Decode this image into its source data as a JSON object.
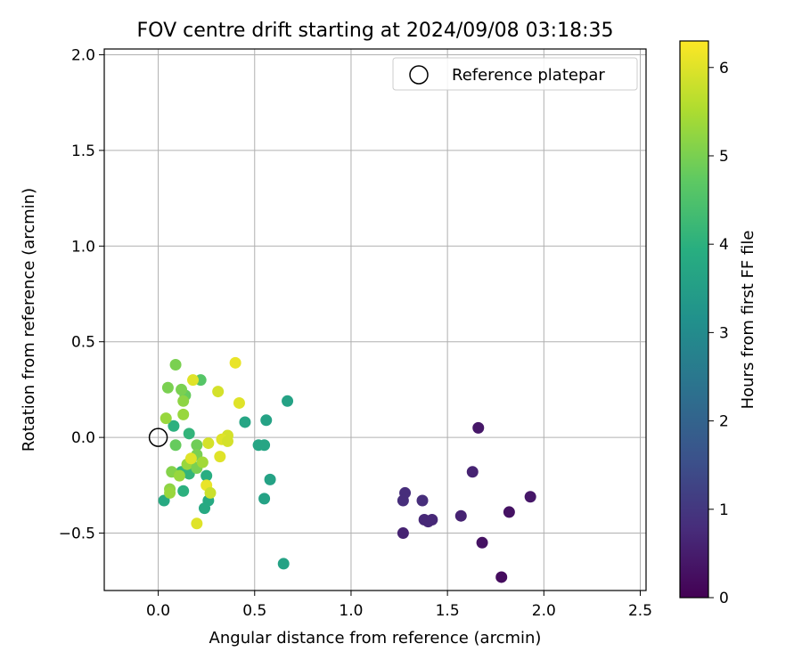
{
  "chart_data": {
    "type": "scatter",
    "title": "FOV centre drift starting at 2024/09/08 03:18:35",
    "xlabel": "Angular distance from reference (arcmin)",
    "ylabel": "Rotation from reference (arcmin)",
    "xlim": [
      -0.28,
      2.53
    ],
    "ylim": [
      -0.8,
      2.03
    ],
    "xticks": [
      0.0,
      0.5,
      1.0,
      1.5,
      2.0,
      2.5
    ],
    "xtick_labels": [
      "0.0",
      "0.5",
      "1.0",
      "1.5",
      "2.0",
      "2.5"
    ],
    "yticks": [
      -0.5,
      0.0,
      0.5,
      1.0,
      1.5,
      2.0
    ],
    "ytick_labels": [
      "−0.5",
      "0.0",
      "0.5",
      "1.0",
      "1.5",
      "2.0"
    ],
    "grid": true,
    "legend": {
      "position": "top-right",
      "entries": [
        {
          "label": "Reference platepar",
          "marker": "open-circle",
          "color": "#000000"
        }
      ]
    },
    "reference_point": {
      "x": 0.0,
      "y": 0.0
    },
    "colorbar": {
      "label": "Hours from first FF file",
      "range": [
        0,
        6.3
      ],
      "ticks": [
        0,
        1,
        2,
        3,
        4,
        5,
        6
      ],
      "tick_labels": [
        "0",
        "1",
        "2",
        "3",
        "4",
        "5",
        "6"
      ],
      "colormap": "viridis"
    },
    "points": [
      {
        "x": 1.66,
        "y": 0.05,
        "c": 0.4
      },
      {
        "x": 1.93,
        "y": -0.31,
        "c": 0.4
      },
      {
        "x": 1.63,
        "y": -0.18,
        "c": 0.6
      },
      {
        "x": 1.82,
        "y": -0.39,
        "c": 0.3
      },
      {
        "x": 1.28,
        "y": -0.29,
        "c": 0.8
      },
      {
        "x": 1.27,
        "y": -0.33,
        "c": 0.8
      },
      {
        "x": 1.37,
        "y": -0.33,
        "c": 0.8
      },
      {
        "x": 1.38,
        "y": -0.43,
        "c": 0.7
      },
      {
        "x": 1.4,
        "y": -0.44,
        "c": 0.7
      },
      {
        "x": 1.42,
        "y": -0.43,
        "c": 0.7
      },
      {
        "x": 1.57,
        "y": -0.41,
        "c": 0.6
      },
      {
        "x": 1.27,
        "y": -0.5,
        "c": 0.6
      },
      {
        "x": 1.68,
        "y": -0.55,
        "c": 0.3
      },
      {
        "x": 1.78,
        "y": -0.73,
        "c": 0.2
      },
      {
        "x": 0.67,
        "y": 0.19,
        "c": 3.6
      },
      {
        "x": 0.56,
        "y": 0.09,
        "c": 3.6
      },
      {
        "x": 0.45,
        "y": 0.08,
        "c": 3.7
      },
      {
        "x": 0.52,
        "y": -0.04,
        "c": 3.7
      },
      {
        "x": 0.55,
        "y": -0.04,
        "c": 3.7
      },
      {
        "x": 0.58,
        "y": -0.22,
        "c": 3.6
      },
      {
        "x": 0.55,
        "y": -0.32,
        "c": 3.6
      },
      {
        "x": 0.65,
        "y": -0.66,
        "c": 3.6
      },
      {
        "x": 0.26,
        "y": -0.33,
        "c": 3.8
      },
      {
        "x": 0.24,
        "y": -0.37,
        "c": 3.8
      },
      {
        "x": 0.03,
        "y": -0.33,
        "c": 3.8
      },
      {
        "x": 0.08,
        "y": 0.06,
        "c": 4.0
      },
      {
        "x": 0.16,
        "y": 0.02,
        "c": 4.1
      },
      {
        "x": 0.12,
        "y": -0.18,
        "c": 4.1
      },
      {
        "x": 0.16,
        "y": -0.19,
        "c": 4.1
      },
      {
        "x": 0.25,
        "y": -0.2,
        "c": 3.9
      },
      {
        "x": 0.13,
        "y": -0.28,
        "c": 4.0
      },
      {
        "x": 0.22,
        "y": 0.3,
        "c": 4.6
      },
      {
        "x": 0.14,
        "y": 0.22,
        "c": 4.8
      },
      {
        "x": 0.09,
        "y": 0.38,
        "c": 5.0
      },
      {
        "x": 0.12,
        "y": 0.25,
        "c": 5.0
      },
      {
        "x": 0.05,
        "y": 0.26,
        "c": 5.0
      },
      {
        "x": 0.13,
        "y": 0.19,
        "c": 5.2
      },
      {
        "x": 0.13,
        "y": 0.12,
        "c": 5.3
      },
      {
        "x": 0.04,
        "y": 0.1,
        "c": 5.3
      },
      {
        "x": 0.09,
        "y": -0.04,
        "c": 4.8
      },
      {
        "x": 0.2,
        "y": -0.04,
        "c": 4.9
      },
      {
        "x": 0.2,
        "y": -0.09,
        "c": 5.0
      },
      {
        "x": 0.17,
        "y": -0.12,
        "c": 5.1
      },
      {
        "x": 0.15,
        "y": -0.14,
        "c": 5.3
      },
      {
        "x": 0.2,
        "y": -0.16,
        "c": 5.0
      },
      {
        "x": 0.07,
        "y": -0.18,
        "c": 5.1
      },
      {
        "x": 0.11,
        "y": -0.2,
        "c": 5.3
      },
      {
        "x": 0.06,
        "y": -0.27,
        "c": 5.2
      },
      {
        "x": 0.06,
        "y": -0.29,
        "c": 5.3
      },
      {
        "x": 0.23,
        "y": -0.13,
        "c": 5.4
      },
      {
        "x": 0.4,
        "y": 0.39,
        "c": 6.1
      },
      {
        "x": 0.18,
        "y": 0.3,
        "c": 6.0
      },
      {
        "x": 0.31,
        "y": 0.24,
        "c": 5.9
      },
      {
        "x": 0.42,
        "y": 0.18,
        "c": 6.0
      },
      {
        "x": 0.36,
        "y": 0.01,
        "c": 5.9
      },
      {
        "x": 0.33,
        "y": -0.01,
        "c": 6.0
      },
      {
        "x": 0.36,
        "y": -0.02,
        "c": 5.9
      },
      {
        "x": 0.26,
        "y": -0.03,
        "c": 5.9
      },
      {
        "x": 0.32,
        "y": -0.1,
        "c": 6.0
      },
      {
        "x": 0.17,
        "y": -0.11,
        "c": 6.0
      },
      {
        "x": 0.25,
        "y": -0.25,
        "c": 6.1
      },
      {
        "x": 0.27,
        "y": -0.29,
        "c": 5.8
      },
      {
        "x": 0.2,
        "y": -0.45,
        "c": 6.0
      }
    ]
  }
}
